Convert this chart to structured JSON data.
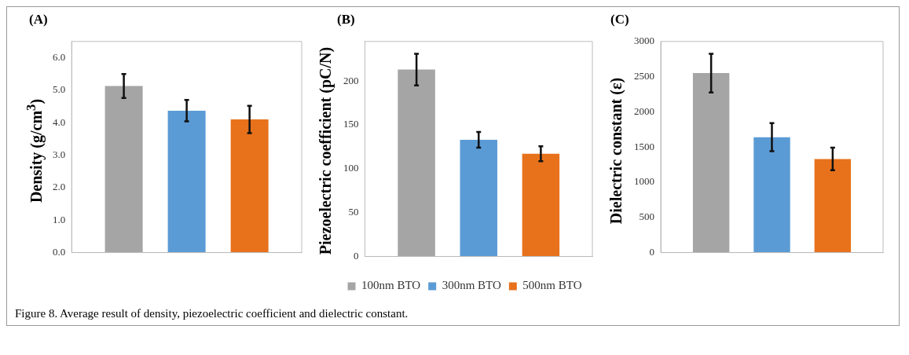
{
  "chart_data": [
    {
      "type": "bar",
      "title": "(A)",
      "ylabel": "Density (g/cm$^{3}$)",
      "categories": [
        null
      ],
      "ylim": [
        0,
        6.5
      ],
      "yticks": [
        {
          "value": 0,
          "label": "0.0"
        },
        {
          "value": 1,
          "label": "1.0"
        },
        {
          "value": 2,
          "label": "2.0"
        },
        {
          "value": 3,
          "label": "3.0"
        },
        {
          "value": 4,
          "label": "4.0"
        },
        {
          "value": 5,
          "label": "5.0"
        },
        {
          "value": 6,
          "label": "6.0"
        }
      ],
      "grid": false,
      "legend": false,
      "series": [
        {
          "color": "#a5a5a5",
          "values": [
            5.13
          ],
          "errors": [
            0.37
          ]
        },
        {
          "color": "#5b9bd5",
          "values": [
            4.37
          ],
          "errors": [
            0.33
          ]
        },
        {
          "color": "#e8721c",
          "values": [
            4.1
          ],
          "errors": [
            0.42
          ]
        }
      ],
      "annotations": [
        "Figure 8. Average result of density, piezoelectric coefficient and dielectric constant."
      ]
    },
    {
      "type": "bar",
      "title": "(B)",
      "ylabel": "Piezoelectric coefficient (pC/N)",
      "categories": [
        null
      ],
      "ylim": [
        0,
        245
      ],
      "yticks": [
        0,
        50,
        100,
        150,
        200
      ],
      "grid": false,
      "legend": "bottom",
      "series": [
        {
          "name": "100nm BTO",
          "color": "#a5a5a5",
          "values": [
            213
          ],
          "errors": [
            18
          ]
        },
        {
          "name": "300nm BTO",
          "color": "#5b9bd5",
          "values": [
            133
          ],
          "errors": [
            9
          ]
        },
        {
          "name": "500nm BTO",
          "color": "#e8721c",
          "values": [
            117
          ],
          "errors": [
            8.5
          ]
        }
      ]
    },
    {
      "type": "bar",
      "title": "(C)",
      "ylabel": "Dielectric constant (ε)",
      "categories": [
        null
      ],
      "ylim": [
        0,
        3000
      ],
      "yticks": [
        0,
        500,
        1000,
        1500,
        2000,
        2500,
        3000
      ],
      "grid": false,
      "legend": false,
      "series": [
        {
          "color": "#a5a5a5",
          "values": [
            2550
          ],
          "errors": [
            275
          ]
        },
        {
          "color": "#5b9bd5",
          "values": [
            1640
          ],
          "errors": [
            200
          ]
        },
        {
          "color": "#e8721c",
          "values": [
            1330
          ],
          "errors": [
            160
          ]
        }
      ]
    }
  ]
}
